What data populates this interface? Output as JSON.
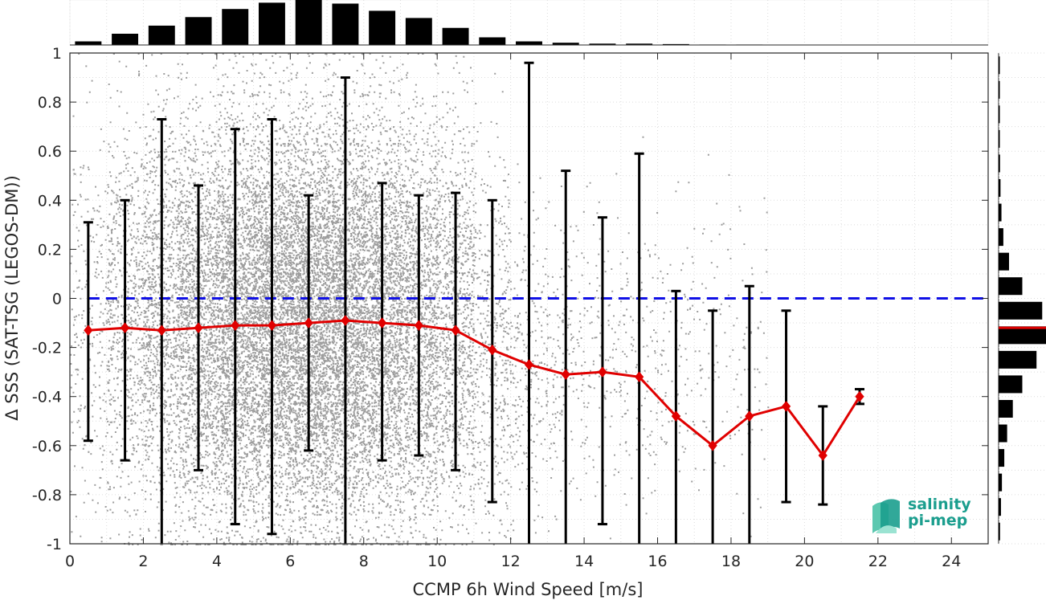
{
  "chart_data": {
    "type": "scatter",
    "xlabel": "CCMP 6h Wind Speed [m/s]",
    "ylabel": "Δ SSS (SAT-TSG (LEGOS-DM))",
    "xlim": [
      0,
      25
    ],
    "ylim": [
      -1,
      1
    ],
    "x_ticks": [
      "0",
      "2",
      "4",
      "6",
      "8",
      "10",
      "12",
      "14",
      "16",
      "18",
      "20",
      "22",
      "24"
    ],
    "y_ticks": [
      "-1",
      "-0.8",
      "-0.6",
      "-0.4",
      "-0.2",
      "0",
      "0.2",
      "0.4",
      "0.6",
      "0.8",
      "1"
    ],
    "grid": true,
    "reference_line": {
      "y": 0,
      "color": "#1010e6",
      "style": "dashed"
    },
    "binned_mean": {
      "color": "#e00000",
      "x": [
        0.5,
        1.5,
        2.5,
        3.5,
        4.5,
        5.5,
        6.5,
        7.5,
        8.5,
        9.5,
        10.5,
        11.5,
        12.5,
        13.5,
        14.5,
        15.5,
        16.5,
        17.5,
        18.5,
        19.5,
        20.5,
        21.5
      ],
      "y": [
        -0.13,
        -0.12,
        -0.13,
        -0.12,
        -0.11,
        -0.11,
        -0.1,
        -0.09,
        -0.1,
        -0.11,
        -0.13,
        -0.21,
        -0.27,
        -0.31,
        -0.3,
        -0.32,
        -0.48,
        -0.6,
        -0.48,
        -0.44,
        -0.64,
        -0.4
      ]
    },
    "error_bars": {
      "color": "#000000",
      "upper": [
        0.31,
        0.4,
        0.73,
        0.46,
        0.69,
        0.73,
        0.42,
        0.9,
        0.47,
        0.42,
        0.43,
        0.4,
        0.96,
        0.52,
        0.33,
        0.59,
        0.03,
        -0.05,
        0.05,
        -0.05,
        -0.44,
        -0.37
      ],
      "lower": [
        -0.58,
        -0.66,
        -1.0,
        -0.7,
        -0.92,
        -0.96,
        -0.62,
        -1.0,
        -0.66,
        -0.64,
        -0.7,
        -0.83,
        -1.0,
        -1.0,
        -0.92,
        -1.0,
        -1.0,
        -1.0,
        -1.0,
        -0.83,
        -0.84,
        -0.43
      ]
    },
    "scatter_color": "#8c8c8c",
    "top_histogram": {
      "bin_centers": [
        0.5,
        1.5,
        2.5,
        3.5,
        4.5,
        5.5,
        6.5,
        7.5,
        8.5,
        9.5,
        10.5,
        11.5,
        12.5,
        13.5,
        14.5,
        15.5,
        16.5,
        17.5,
        18.5
      ],
      "relative_counts": [
        0.08,
        0.25,
        0.43,
        0.62,
        0.8,
        0.94,
        1.0,
        0.92,
        0.76,
        0.6,
        0.38,
        0.17,
        0.08,
        0.05,
        0.03,
        0.03,
        0.02,
        0.01,
        0.01
      ]
    },
    "right_histogram": {
      "bin_centers": [
        -0.95,
        -0.85,
        -0.75,
        -0.65,
        -0.55,
        -0.45,
        -0.35,
        -0.25,
        -0.15,
        -0.05,
        0.05,
        0.15,
        0.25,
        0.35,
        0.45,
        0.55,
        0.65,
        0.75,
        0.85,
        0.95
      ],
      "relative_counts": [
        0.03,
        0.05,
        0.07,
        0.12,
        0.18,
        0.3,
        0.5,
        0.8,
        1.0,
        0.92,
        0.5,
        0.22,
        0.1,
        0.06,
        0.04,
        0.03,
        0.02,
        0.02,
        0.02,
        0.01
      ],
      "median_marker": -0.12,
      "median_color": "#e00000"
    }
  },
  "logo": {
    "line1": "salinity",
    "line2": "pi-mep",
    "color": "#1b9e8e"
  }
}
